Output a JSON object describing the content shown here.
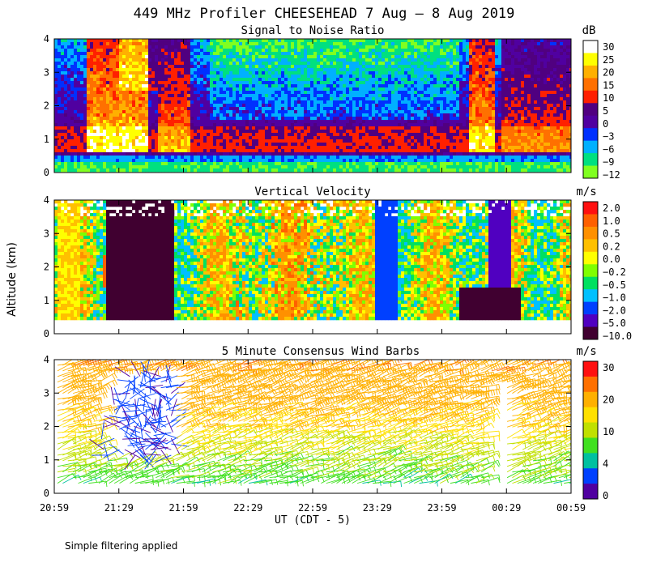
{
  "title": "449 MHz Profiler CHEESEHEAD  7 Aug –  8 Aug 2019",
  "x_axis_label": "UT  (CDT - 5)",
  "y_axis_label": "Altitude (km)",
  "footnote": "Simple filtering applied",
  "chart_data": [
    {
      "type": "heatmap",
      "title": "Signal to Noise Ratio",
      "unit": "dB",
      "x_ticks": [
        "20:59",
        "21:29",
        "21:59",
        "22:29",
        "22:59",
        "23:29",
        "23:59",
        "00:29",
        "00:59"
      ],
      "y_ticks": [
        "0",
        "1",
        "2",
        "3",
        "4"
      ],
      "ylim": [
        0,
        4
      ],
      "colorbar": {
        "labels": [
          "30",
          "25",
          "20",
          "15",
          "10",
          "5",
          "0",
          "−3",
          "−6",
          "−9",
          "−12"
        ],
        "colors": [
          "#ffffff",
          "#ffff00",
          "#ffb000",
          "#ff7000",
          "#ff2000",
          "#500080",
          "#5000a0",
          "#0030ff",
          "#00b0ff",
          "#00e080",
          "#80ff20"
        ]
      }
    },
    {
      "type": "heatmap",
      "title": "Vertical Velocity",
      "unit": "m/s",
      "x_ticks": [
        "20:59",
        "21:29",
        "21:59",
        "22:29",
        "22:59",
        "23:29",
        "23:59",
        "00:29",
        "00:59"
      ],
      "y_ticks": [
        "0",
        "1",
        "2",
        "3",
        "4"
      ],
      "ylim": [
        0,
        4
      ],
      "colorbar": {
        "labels": [
          "2.0",
          "1.0",
          "0.5",
          "0.2",
          "0.0",
          "−0.2",
          "−0.5",
          "−1.0",
          "−2.0",
          "−5.0",
          "−10.0"
        ],
        "colors": [
          "#ff1010",
          "#ff6000",
          "#ff9000",
          "#ffc000",
          "#ffff00",
          "#80ff00",
          "#00e060",
          "#00c0ff",
          "#0040ff",
          "#5000c0",
          "#400030"
        ]
      }
    },
    {
      "type": "scatter",
      "title": "5 Minute Consensus Wind Barbs",
      "unit": "m/s",
      "x_ticks": [
        "20:59",
        "21:29",
        "21:59",
        "22:29",
        "22:59",
        "23:29",
        "23:59",
        "00:29",
        "00:59"
      ],
      "y_ticks": [
        "0",
        "1",
        "2",
        "3",
        "4"
      ],
      "ylim": [
        0,
        4
      ],
      "colorbar": {
        "labels": [
          "30",
          "20",
          "10",
          "4",
          "0"
        ],
        "colors": [
          "#ff1010",
          "#ff7000",
          "#ffb000",
          "#ffe000",
          "#c0e000",
          "#40e020",
          "#00c0a0",
          "#0040ff",
          "#5000a0"
        ]
      }
    }
  ]
}
